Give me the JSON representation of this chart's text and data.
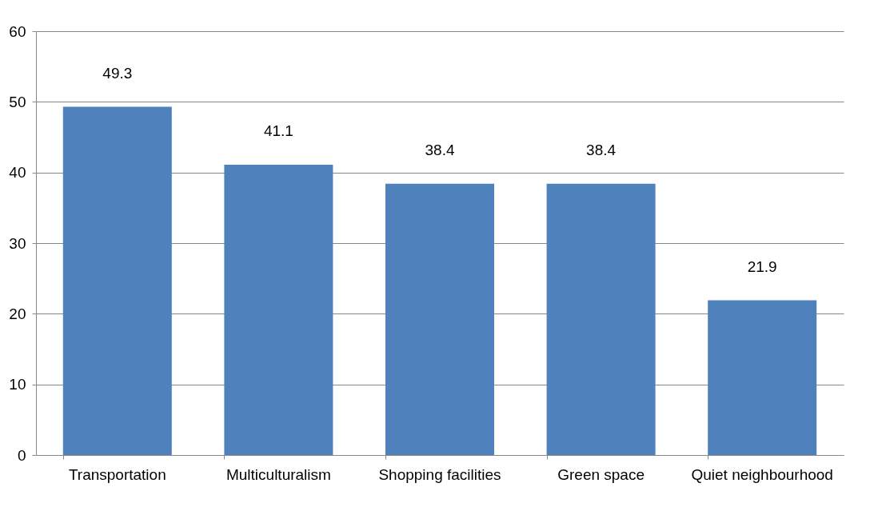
{
  "chart_data": {
    "type": "bar",
    "categories": [
      "Transportation",
      "Multiculturalism",
      "Shopping facilities",
      "Green space",
      "Quiet neighbourhood"
    ],
    "values": [
      49.3,
      41.1,
      38.4,
      38.4,
      21.9
    ],
    "color": "#4f81bd",
    "ylim": [
      0,
      60
    ],
    "yticks": [
      0,
      10,
      20,
      30,
      40,
      50,
      60
    ],
    "grid": "y",
    "data_labels": true
  }
}
